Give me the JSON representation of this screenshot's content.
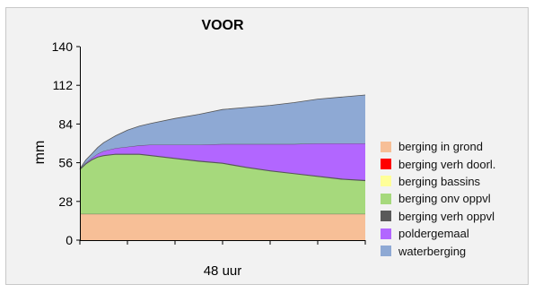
{
  "chart_data": {
    "type": "area",
    "stacked": true,
    "title": "VOOR",
    "xlabel": "48 uur",
    "ylabel": "mm",
    "ylim": [
      0,
      140
    ],
    "yticks": [
      0,
      28,
      56,
      84,
      112,
      140
    ],
    "xlim": [
      0,
      48
    ],
    "grid": false,
    "legend_position": "right",
    "x": [
      0,
      1,
      2,
      3,
      4,
      6,
      8,
      10,
      12,
      16,
      20,
      24,
      28,
      32,
      36,
      40,
      44,
      48
    ],
    "series": [
      {
        "name": "berging in grond",
        "color": "#f7bf97",
        "values": [
          19,
          19,
          19,
          19,
          19,
          19,
          19,
          19,
          19,
          19,
          19,
          19,
          19,
          19,
          19,
          19,
          19,
          19
        ]
      },
      {
        "name": "berging verh doorl.",
        "color": "#ff0000",
        "values": [
          0,
          0,
          0,
          0,
          0,
          0,
          0,
          0,
          0,
          0,
          0,
          0,
          0,
          0,
          0,
          0,
          0,
          0
        ]
      },
      {
        "name": "berging bassins",
        "color": "#ffff99",
        "values": [
          0,
          0,
          0,
          0,
          0,
          0,
          0,
          0,
          0,
          0,
          0,
          0,
          0,
          0,
          0,
          0,
          0,
          0
        ]
      },
      {
        "name": "berging onv oppvl",
        "color": "#a6d97c",
        "values": [
          32,
          36,
          39,
          41,
          42,
          43,
          43,
          43,
          42,
          40,
          38,
          36.5,
          33.5,
          31,
          29,
          27,
          25,
          24
        ]
      },
      {
        "name": "berging verh oppvl",
        "color": "#595959",
        "values": [
          0.5,
          0.5,
          0.5,
          0.5,
          0.5,
          0.5,
          0.5,
          0.5,
          0.5,
          0.5,
          0.5,
          0.5,
          0.5,
          0.5,
          0.5,
          0.5,
          0.5,
          0.5
        ]
      },
      {
        "name": "poldergemaal",
        "color": "#b266ff",
        "values": [
          0,
          0.5,
          1,
          2,
          3,
          4,
          5,
          6,
          7.5,
          9.5,
          11.5,
          13.5,
          16.5,
          19,
          21,
          23.5,
          25.5,
          26.5
        ]
      },
      {
        "name": "waterberging",
        "color": "#8ea9d4",
        "values": [
          0,
          2,
          3,
          4.5,
          6,
          9,
          12,
          14,
          15.5,
          19,
          22,
          25,
          26.5,
          28,
          30,
          32,
          33.5,
          35
        ]
      }
    ]
  }
}
